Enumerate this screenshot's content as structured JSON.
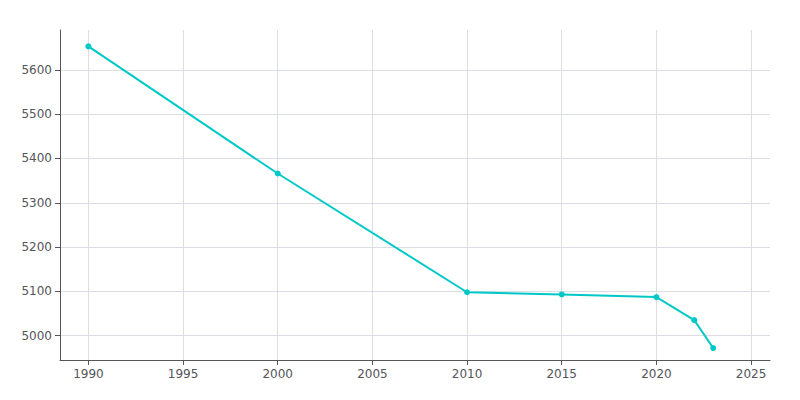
{
  "chart_data": {
    "type": "line",
    "x": [
      1990,
      2000,
      2010,
      2015,
      2020,
      2022,
      2023
    ],
    "values": [
      5653,
      5366,
      5098,
      5093,
      5087,
      5035,
      4972
    ],
    "color": "#00c8c8",
    "marker": "circle",
    "xlim": [
      1988.5,
      2026
    ],
    "ylim": [
      4945,
      5690
    ],
    "xticks": [
      1990,
      1995,
      2000,
      2005,
      2010,
      2015,
      2020,
      2025
    ],
    "yticks": [
      5000,
      5100,
      5200,
      5300,
      5400,
      5500,
      5600
    ],
    "grid": true
  }
}
